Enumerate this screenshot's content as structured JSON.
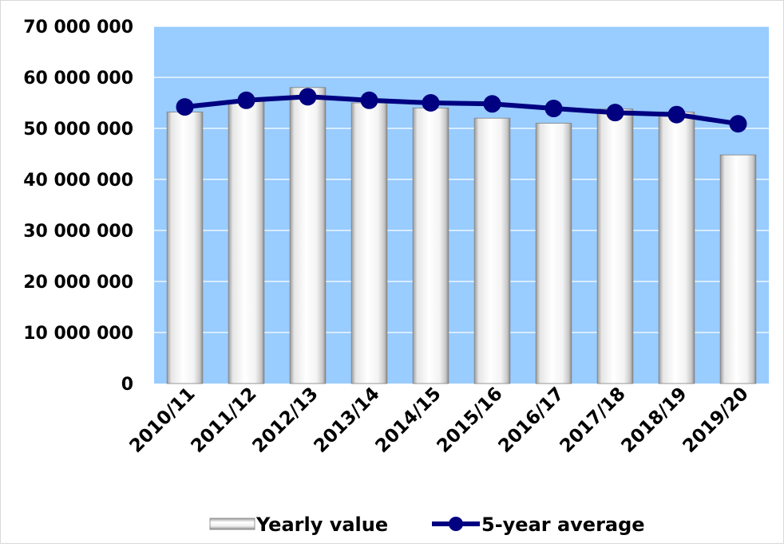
{
  "chart_data": {
    "type": "bar",
    "title": "",
    "xlabel": "",
    "ylabel": "",
    "categories": [
      "2010/11",
      "2011/12",
      "2012/13",
      "2013/14",
      "2014/15",
      "2015/16",
      "2016/17",
      "2017/18",
      "2018/19",
      "2019/20"
    ],
    "series": [
      {
        "name": "Yearly value",
        "type": "bar",
        "values": [
          53200000,
          55500000,
          58000000,
          55000000,
          54000000,
          52000000,
          51000000,
          53800000,
          53200000,
          44800000
        ]
      },
      {
        "name": "5-year average",
        "type": "line",
        "values": [
          54200000,
          55500000,
          56200000,
          55500000,
          55000000,
          54800000,
          53900000,
          53100000,
          52700000,
          50900000
        ]
      }
    ],
    "ylim": [
      0,
      70000000
    ],
    "yticks": [
      0,
      10000000,
      20000000,
      30000000,
      40000000,
      50000000,
      60000000,
      70000000
    ],
    "ytick_labels": [
      "0",
      "10 000 000",
      "20 000 000",
      "30 000 000",
      "40 000 000",
      "50 000 000",
      "60 000 000",
      "70 000 000"
    ],
    "grid": true,
    "legend_position": "bottom",
    "colors": {
      "plot_background": "#99ccff",
      "gridline": "#ffffff",
      "bar_fill": "#ffffff",
      "bar_shade": "#a6a6a6",
      "line": "#000080"
    }
  }
}
